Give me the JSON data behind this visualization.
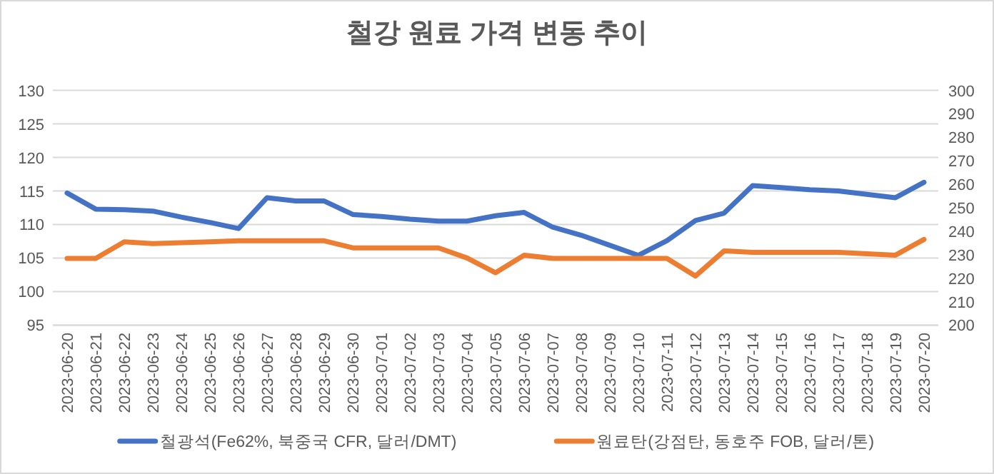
{
  "chart_data": {
    "type": "line",
    "title": "철강 원료 가격 변동 추이",
    "categories": [
      "2023-06-20",
      "2023-06-21",
      "2023-06-22",
      "2023-06-23",
      "2023-06-24",
      "2023-06-25",
      "2023-06-26",
      "2023-06-27",
      "2023-06-28",
      "2023-06-29",
      "2023-06-30",
      "2023-07-01",
      "2023-07-02",
      "2023-07-03",
      "2023-07-04",
      "2023-07-05",
      "2023-07-06",
      "2023-07-07",
      "2023-07-08",
      "2023-07-09",
      "2023-07-10",
      "2023-07-11",
      "2023-07-12",
      "2023-07-13",
      "2023-07-14",
      "2023-07-15",
      "2023-07-16",
      "2023-07-17",
      "2023-07-18",
      "2023-07-19",
      "2023-07-20"
    ],
    "series": [
      {
        "name": "철광석(Fe62%, 북중국 CFR, 달러/DMT)",
        "color": "#4472c4",
        "values": [
          114.7,
          112.3,
          112.2,
          112.0,
          111.1,
          110.3,
          109.4,
          114.0,
          113.5,
          113.5,
          111.5,
          111.2,
          110.8,
          110.5,
          110.5,
          111.3,
          111.8,
          109.6,
          108.4,
          106.9,
          105.4,
          107.6,
          110.6,
          111.7,
          115.8,
          115.5,
          115.2,
          115.0,
          114.5,
          114.0,
          116.3
        ]
      },
      {
        "name": "원료탄(강점탄, 동호주 FOB, 달러/톤)",
        "color": "#ed7d31",
        "axis": "y2",
        "values": [
          228.4,
          228.4,
          235.5,
          234.7,
          235.1,
          235.5,
          235.9,
          235.9,
          235.9,
          235.9,
          232.9,
          232.9,
          232.9,
          232.9,
          228.6,
          222.3,
          229.8,
          228.4,
          228.4,
          228.4,
          228.4,
          228.4,
          220.9,
          231.6,
          231.0,
          231.0,
          231.0,
          231.0,
          230.4,
          229.8,
          236.5
        ]
      }
    ],
    "ylim": [
      95,
      130
    ],
    "yticks": [
      95,
      100,
      105,
      110,
      115,
      120,
      125,
      130
    ],
    "y2lim": [
      200,
      300
    ],
    "y2ticks": [
      200,
      210,
      220,
      230,
      240,
      250,
      260,
      270,
      280,
      290,
      300
    ],
    "grid": "y",
    "legend": "bottom"
  }
}
